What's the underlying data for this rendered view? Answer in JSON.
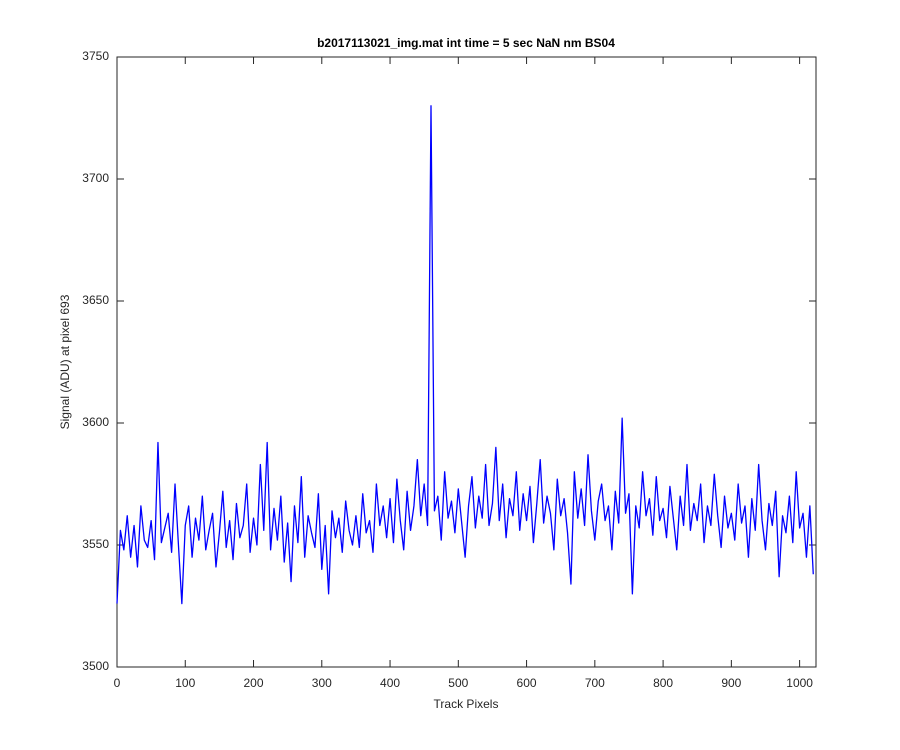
{
  "chart_data": {
    "type": "line",
    "title": "b2017113021_img.mat int time = 5 sec  NaN nm BS04",
    "xlabel": "Track Pixels",
    "ylabel": "Signal (ADU) at pixel 693",
    "xlim": [
      0,
      1024
    ],
    "ylim": [
      3500,
      3750
    ],
    "xticks": [
      0,
      100,
      200,
      300,
      400,
      500,
      600,
      700,
      800,
      900,
      1000
    ],
    "yticks": [
      3500,
      3550,
      3600,
      3650,
      3700,
      3750
    ],
    "series": [
      {
        "color": "#0000ff",
        "x": [
          0,
          5,
          10,
          15,
          20,
          25,
          30,
          35,
          40,
          45,
          50,
          55,
          60,
          65,
          70,
          75,
          80,
          85,
          90,
          95,
          100,
          105,
          110,
          115,
          120,
          125,
          130,
          135,
          140,
          145,
          150,
          155,
          160,
          165,
          170,
          175,
          180,
          185,
          190,
          195,
          200,
          205,
          210,
          215,
          220,
          225,
          230,
          235,
          240,
          245,
          250,
          255,
          260,
          265,
          270,
          275,
          280,
          285,
          290,
          295,
          300,
          305,
          310,
          315,
          320,
          325,
          330,
          335,
          340,
          345,
          350,
          355,
          360,
          365,
          370,
          375,
          380,
          385,
          390,
          395,
          400,
          405,
          410,
          415,
          420,
          425,
          430,
          435,
          440,
          445,
          450,
          455,
          460,
          465,
          470,
          475,
          480,
          485,
          490,
          495,
          500,
          505,
          510,
          515,
          520,
          525,
          530,
          535,
          540,
          545,
          550,
          555,
          560,
          565,
          570,
          575,
          580,
          585,
          590,
          595,
          600,
          605,
          610,
          615,
          620,
          625,
          630,
          635,
          640,
          645,
          650,
          655,
          660,
          665,
          670,
          675,
          680,
          685,
          690,
          695,
          700,
          705,
          710,
          715,
          720,
          725,
          730,
          735,
          740,
          745,
          750,
          755,
          760,
          765,
          770,
          775,
          780,
          785,
          790,
          795,
          800,
          805,
          810,
          815,
          820,
          825,
          830,
          835,
          840,
          845,
          850,
          855,
          860,
          865,
          870,
          875,
          880,
          885,
          890,
          895,
          900,
          905,
          910,
          915,
          920,
          925,
          930,
          935,
          940,
          945,
          950,
          955,
          960,
          965,
          970,
          975,
          980,
          985,
          990,
          995,
          1000,
          1005,
          1010,
          1015,
          1020
        ],
        "values": [
          3526,
          3556,
          3548,
          3562,
          3545,
          3558,
          3541,
          3566,
          3552,
          3549,
          3560,
          3544,
          3592,
          3551,
          3557,
          3563,
          3547,
          3575,
          3550,
          3526,
          3558,
          3566,
          3545,
          3561,
          3552,
          3570,
          3548,
          3556,
          3563,
          3541,
          3555,
          3572,
          3549,
          3560,
          3544,
          3567,
          3553,
          3558,
          3575,
          3547,
          3561,
          3550,
          3583,
          3556,
          3592,
          3548,
          3565,
          3552,
          3570,
          3543,
          3559,
          3535,
          3566,
          3551,
          3578,
          3545,
          3562,
          3555,
          3549,
          3571,
          3540,
          3558,
          3530,
          3564,
          3553,
          3561,
          3547,
          3568,
          3556,
          3550,
          3562,
          3549,
          3571,
          3555,
          3560,
          3547,
          3575,
          3558,
          3566,
          3553,
          3569,
          3551,
          3577,
          3560,
          3548,
          3572,
          3556,
          3566,
          3585,
          3562,
          3575,
          3558,
          3730,
          3564,
          3570,
          3552,
          3580,
          3561,
          3568,
          3555,
          3573,
          3559,
          3545,
          3566,
          3578,
          3557,
          3570,
          3561,
          3583,
          3558,
          3567,
          3590,
          3560,
          3575,
          3553,
          3569,
          3562,
          3580,
          3556,
          3571,
          3560,
          3574,
          3551,
          3567,
          3585,
          3559,
          3570,
          3563,
          3548,
          3577,
          3562,
          3569,
          3555,
          3534,
          3580,
          3561,
          3573,
          3558,
          3587,
          3564,
          3552,
          3568,
          3575,
          3560,
          3566,
          3548,
          3572,
          3559,
          3602,
          3563,
          3571,
          3530,
          3566,
          3557,
          3580,
          3562,
          3569,
          3554,
          3578,
          3560,
          3565,
          3553,
          3574,
          3561,
          3548,
          3570,
          3558,
          3583,
          3556,
          3567,
          3560,
          3575,
          3551,
          3566,
          3558,
          3579,
          3562,
          3549,
          3570,
          3557,
          3563,
          3552,
          3575,
          3559,
          3566,
          3545,
          3569,
          3556,
          3583,
          3560,
          3548,
          3567,
          3558,
          3572,
          3537,
          3562,
          3555,
          3570,
          3551,
          3580,
          3557,
          3563,
          3545,
          3566,
          3538
        ]
      }
    ]
  }
}
